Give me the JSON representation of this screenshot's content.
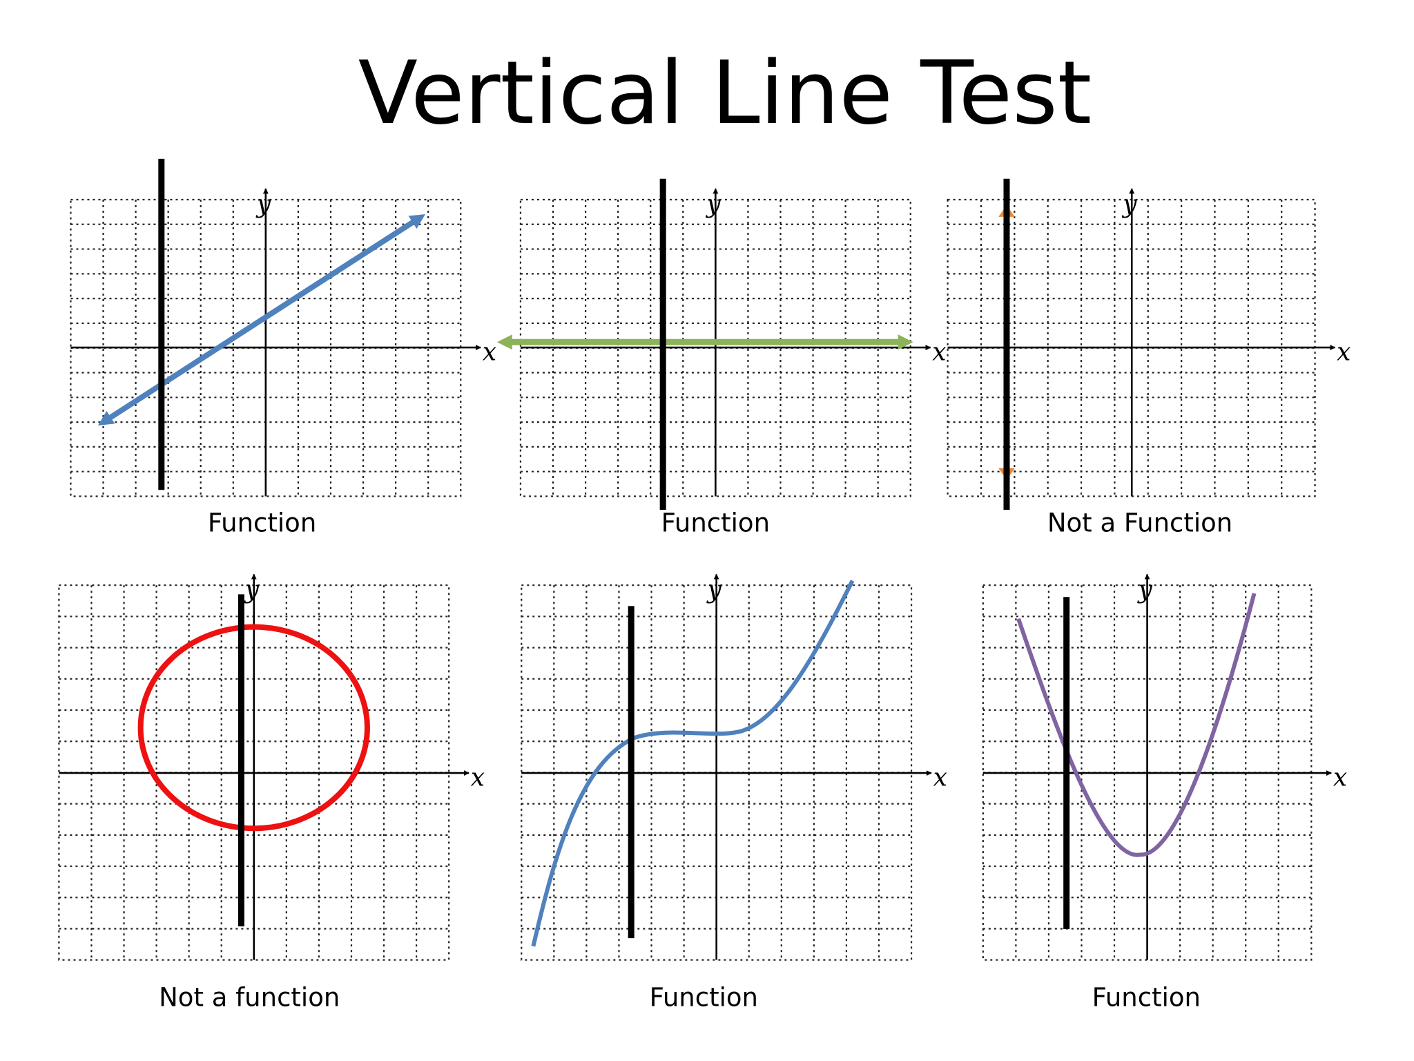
{
  "title": "Vertical Line Test",
  "axis_labels": {
    "x": "x",
    "y": "y"
  },
  "colors": {
    "line_blue": "#4f81bd",
    "line_green": "#8db35a",
    "point_orange": "#e8883a",
    "circle_red": "#ee1111",
    "cubic_blue": "#4f81bd",
    "parabola_purple": "#8064a2",
    "test_line": "#000000"
  },
  "graphs": [
    {
      "id": "graph-1",
      "caption": "Function",
      "graph_type": "line",
      "curve_color": "#4f81bd"
    },
    {
      "id": "graph-2",
      "caption": "Function",
      "graph_type": "horizontal-line",
      "curve_color": "#8db35a"
    },
    {
      "id": "graph-3",
      "caption": "Not a Function",
      "graph_type": "vertical-points",
      "curve_color": "#e8883a"
    },
    {
      "id": "graph-4",
      "caption": "Not a function",
      "graph_type": "circle",
      "curve_color": "#ee1111"
    },
    {
      "id": "graph-5",
      "caption": "Function",
      "graph_type": "cubic",
      "curve_color": "#4f81bd"
    },
    {
      "id": "graph-6",
      "caption": "Function",
      "graph_type": "parabola",
      "curve_color": "#8064a2"
    }
  ]
}
